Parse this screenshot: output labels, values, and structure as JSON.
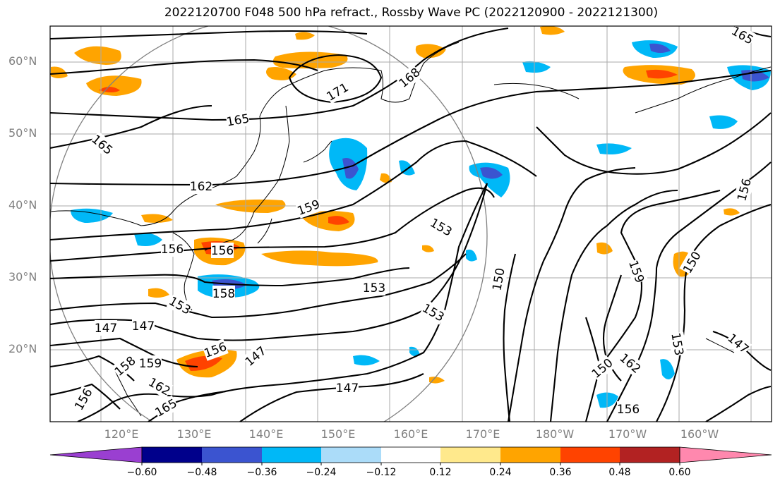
{
  "title": "2022120700 F048 500 hPa refract., Rossby Wave PC (2022120900 - 2022121300)",
  "map": {
    "projection": "equirectangular",
    "lon_range": [
      "110°E",
      "210°E"
    ],
    "lat_range": [
      "10°N",
      "65°N"
    ],
    "grid": true,
    "lat_labels": [
      "20°N",
      "30°N",
      "40°N",
      "50°N",
      "60°N"
    ],
    "lon_labels": [
      "120°E",
      "130°E",
      "140°E",
      "150°E",
      "160°E",
      "170°E",
      "180°W",
      "170°W",
      "160°W"
    ],
    "contour_labels": [
      "165",
      "171",
      "168",
      "165",
      "165",
      "162",
      "159",
      "153",
      "156",
      "156",
      "150",
      "153",
      "153",
      "158",
      "153",
      "150",
      "159",
      "153",
      "156",
      "147",
      "147",
      "147",
      "159",
      "158",
      "162",
      "165",
      "156",
      "147",
      "156",
      "162",
      "156",
      "147",
      "150"
    ],
    "contour_color": "#000000",
    "reference_circle_color": "#808080"
  },
  "colorbar": {
    "ticks": [
      "−0.60",
      "−0.48",
      "−0.36",
      "−0.24",
      "−0.12",
      "0.12",
      "0.24",
      "0.36",
      "0.48",
      "0.60"
    ],
    "colors": [
      "#9a3fd1",
      "#00008b",
      "#3b54d0",
      "#00b8f7",
      "#abdcf9",
      "#ffffff",
      "#ffe98c",
      "#ffa400",
      "#ff4300",
      "#b22222",
      "#ff88ae"
    ],
    "extend": "both"
  }
}
